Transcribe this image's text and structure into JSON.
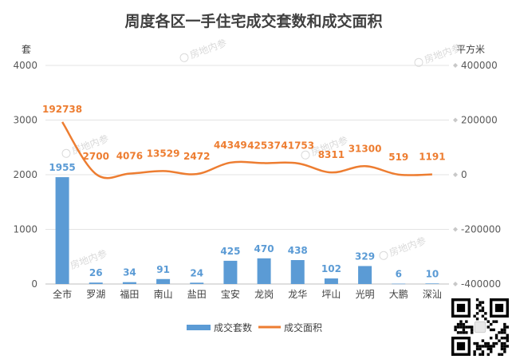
{
  "chart_data": {
    "type": "bar",
    "title": "周度各区一手住宅成交套数和成交面积",
    "y_left_label": "套",
    "y_right_label": "平方米",
    "y_left_ticks": [
      "0",
      "1000",
      "2000",
      "3000",
      "4000"
    ],
    "y_right_ticks": [
      "-400000",
      "-200000",
      "0",
      "200000",
      "400000"
    ],
    "ylim_left": [
      0,
      4000
    ],
    "ylim_right": [
      -400000,
      400000
    ],
    "categories": [
      "全市",
      "罗湖",
      "福田",
      "南山",
      "盐田",
      "宝安",
      "龙岗",
      "龙华",
      "坪山",
      "光明",
      "大鹏",
      "深汕"
    ],
    "series": [
      {
        "name": "成交套数",
        "type": "bar",
        "axis": "left",
        "color": "#5b9bd5",
        "values": [
          1955,
          26,
          34,
          91,
          24,
          425,
          470,
          438,
          102,
          329,
          6,
          10
        ],
        "labels": [
          "1955",
          "26",
          "34",
          "91",
          "24",
          "425",
          "470",
          "438",
          "102",
          "329",
          "6",
          "10"
        ]
      },
      {
        "name": "成交面积",
        "type": "line",
        "axis": "right",
        "color": "#ed7d31",
        "values": [
          192738,
          2700,
          4076,
          13529,
          2472,
          44349,
          42537,
          41753,
          8311,
          31300,
          519,
          1191
        ],
        "labels": [
          "192738",
          "2700",
          "4076",
          "13529",
          "2472",
          "44349",
          "42537",
          "41753",
          "8311",
          "31300",
          "519",
          "1191"
        ]
      }
    ],
    "grid": true,
    "legend": "bottom-center",
    "watermark": "房地内参"
  }
}
